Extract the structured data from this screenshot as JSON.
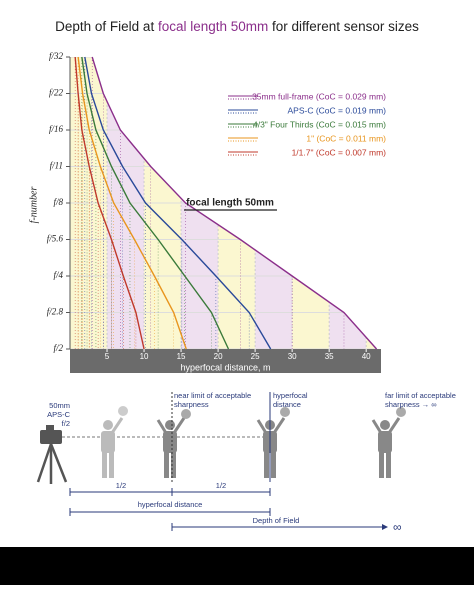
{
  "chart_data": {
    "type": "line",
    "title_parts": [
      "Depth of Field at ",
      "focal length 50mm",
      " for different sensor sizes"
    ],
    "annotation": "focal length 50mm",
    "y_label": "f-number",
    "x_label": "hyperfocal distance, m",
    "categories": [
      "f/2",
      "f/2.8",
      "f/4",
      "f/5.6",
      "f/8",
      "f/11",
      "f/16",
      "f/22",
      "f/32"
    ],
    "xlim": [
      0,
      42
    ],
    "xticks": [
      5,
      10,
      15,
      20,
      25,
      30,
      35,
      40
    ],
    "series": [
      {
        "name": "35mm full-frame (CoC = 0.029 mm)",
        "color": "#8b2f8b",
        "values": [
          41.4,
          37.0,
          30.0,
          23.0,
          15.6,
          10.9,
          6.8,
          4.5,
          3.0
        ]
      },
      {
        "name": "APS-C (CoC = 0.019 mm)",
        "color": "#2a4a9a",
        "values": [
          27.1,
          24.2,
          19.7,
          15.1,
          10.2,
          7.1,
          4.5,
          2.9,
          2.0
        ]
      },
      {
        "name": "4/3\" Four Thirds (CoC = 0.015 mm)",
        "color": "#3a7a3a",
        "values": [
          21.4,
          19.1,
          15.5,
          11.9,
          8.1,
          5.6,
          3.5,
          2.3,
          1.6
        ]
      },
      {
        "name": "1\" (CoC = 0.011 mm)",
        "color": "#e8951e",
        "values": [
          15.7,
          14.0,
          11.4,
          8.7,
          5.9,
          4.1,
          2.6,
          1.7,
          1.1
        ]
      },
      {
        "name": "1/1.7\" (CoC = 0.007 mm)",
        "color": "#c0392b",
        "values": [
          10.0,
          8.9,
          7.2,
          5.6,
          3.8,
          2.6,
          1.6,
          1.1,
          0.7
        ]
      }
    ]
  },
  "illustration": {
    "camera_lines": [
      "50mm",
      "APS-C",
      "f/2"
    ],
    "near_limit": [
      "near limit of acceptable",
      "sharpness"
    ],
    "hyperfocal": [
      "hyperfocal",
      "distance"
    ],
    "far_limit": [
      "far limit of acceptable",
      "sharpness → ∞"
    ],
    "half_left": "1/2",
    "half_right": "1/2",
    "hyperfocal_distance": "hyperfocal distance",
    "depth_of_field": "Depth of Field",
    "infinity": "∞"
  }
}
